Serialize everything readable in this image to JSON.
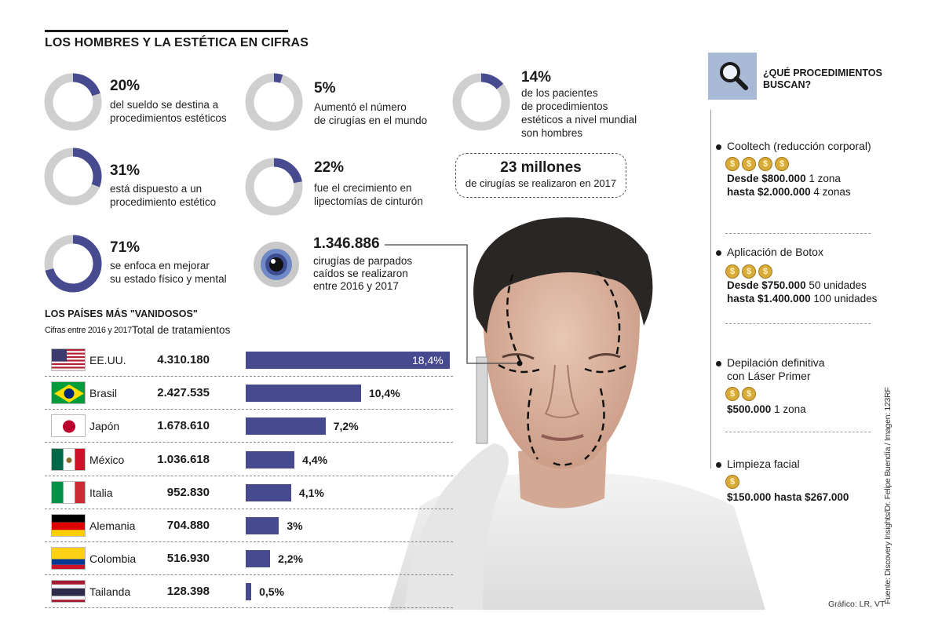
{
  "title": "LOS HOMBRES Y LA ESTÉTICA EN CIFRAS",
  "stats": [
    {
      "value": "20%",
      "fraction": 0.2,
      "lines": [
        "del sueldo se destina a",
        "procedimientos estéticos"
      ]
    },
    {
      "value": "5%",
      "fraction": 0.05,
      "lines": [
        "Aumentó el número",
        "de cirugías en el mundo"
      ]
    },
    {
      "value": "14%",
      "fraction": 0.14,
      "lines": [
        "de los pacientes",
        "de procedimientos",
        "estéticos a nivel mundial",
        "son hombres"
      ]
    },
    {
      "value": "31%",
      "fraction": 0.31,
      "lines": [
        "está dispuesto a un",
        "procedimiento estético"
      ]
    },
    {
      "value": "22%",
      "fraction": 0.22,
      "lines": [
        "fue el crecimiento en",
        "lipectomías de cinturón"
      ]
    },
    {
      "value": "71%",
      "fraction": 0.71,
      "lines": [
        "se enfoca en mejorar",
        "su estado físico y mental"
      ]
    }
  ],
  "bubble": {
    "big": "23 millones",
    "small": "de cirugías se realizaron en 2017"
  },
  "eyelid": {
    "value": "1.346.886",
    "lines": [
      "cirugías de parpados",
      "caídos se realizaron",
      "entre 2016 y 2017"
    ]
  },
  "countries_title": "LOS PAÍSES MÁS \"VANIDOSOS\"",
  "countries_subtitle": "Cifras entre 2016 y 2017",
  "countries_column": "Total de tratamientos",
  "colors": {
    "accent": "#474a8f",
    "ring_bg": "#cfcfcf",
    "search_box": "#a9bad7",
    "coin": "#d9ab38"
  },
  "chart_data": {
    "type": "bar",
    "orientation": "horizontal",
    "categories": [
      "EE.UU.",
      "Brasil",
      "Japón",
      "México",
      "Italia",
      "Alemania",
      "Colombia",
      "Tailanda"
    ],
    "totals": [
      "4.310.180",
      "2.427.535",
      "1.678.610",
      "1.036.618",
      "952.830",
      "704.880",
      "516.930",
      "128.398"
    ],
    "values": [
      18.4,
      10.4,
      7.2,
      4.4,
      4.1,
      3,
      2.2,
      0.5
    ],
    "labels": [
      "18,4%",
      "10,4%",
      "7,2%",
      "4,4%",
      "4,1%",
      "3%",
      "2,2%",
      "0,5%"
    ],
    "flags": [
      "us-flag-icon",
      "brazil-flag-icon",
      "japan-flag-icon",
      "mexico-flag-icon",
      "italy-flag-icon",
      "germany-flag-icon",
      "colombia-flag-icon",
      "thailand-flag-icon"
    ]
  },
  "procedures_title_lines": [
    "¿QUÉ PROCEDIMIENTOS",
    "BUSCAN?"
  ],
  "procedures": [
    {
      "name_lines": [
        "Cooltech (reducción corporal)"
      ],
      "coins": 4,
      "prices": [
        {
          "bold": "Desde $800.000",
          "rest": " 1 zona"
        },
        {
          "bold": "hasta $2.000.000",
          "rest": " 4 zonas"
        }
      ]
    },
    {
      "name_lines": [
        "Aplicación de Botox"
      ],
      "coins": 3,
      "prices": [
        {
          "bold": "Desde $750.000",
          "rest": " 50 unidades"
        },
        {
          "bold": "hasta $1.400.000",
          "rest": " 100 unidades"
        }
      ]
    },
    {
      "name_lines": [
        "Depilación definitiva",
        "con Láser Primer"
      ],
      "coins": 2,
      "prices": [
        {
          "bold": "$500.000",
          "rest": " 1 zona"
        }
      ]
    },
    {
      "name_lines": [
        "Limpieza facial"
      ],
      "coins": 1,
      "prices": [
        {
          "bold": "$150.000 hasta $267.000",
          "rest": ""
        }
      ]
    }
  ],
  "source": "Fuente: Discovery Insights/Dr. Felipe Buendía / Imagen: 123RF",
  "credit": "Gráfico: LR, VT"
}
